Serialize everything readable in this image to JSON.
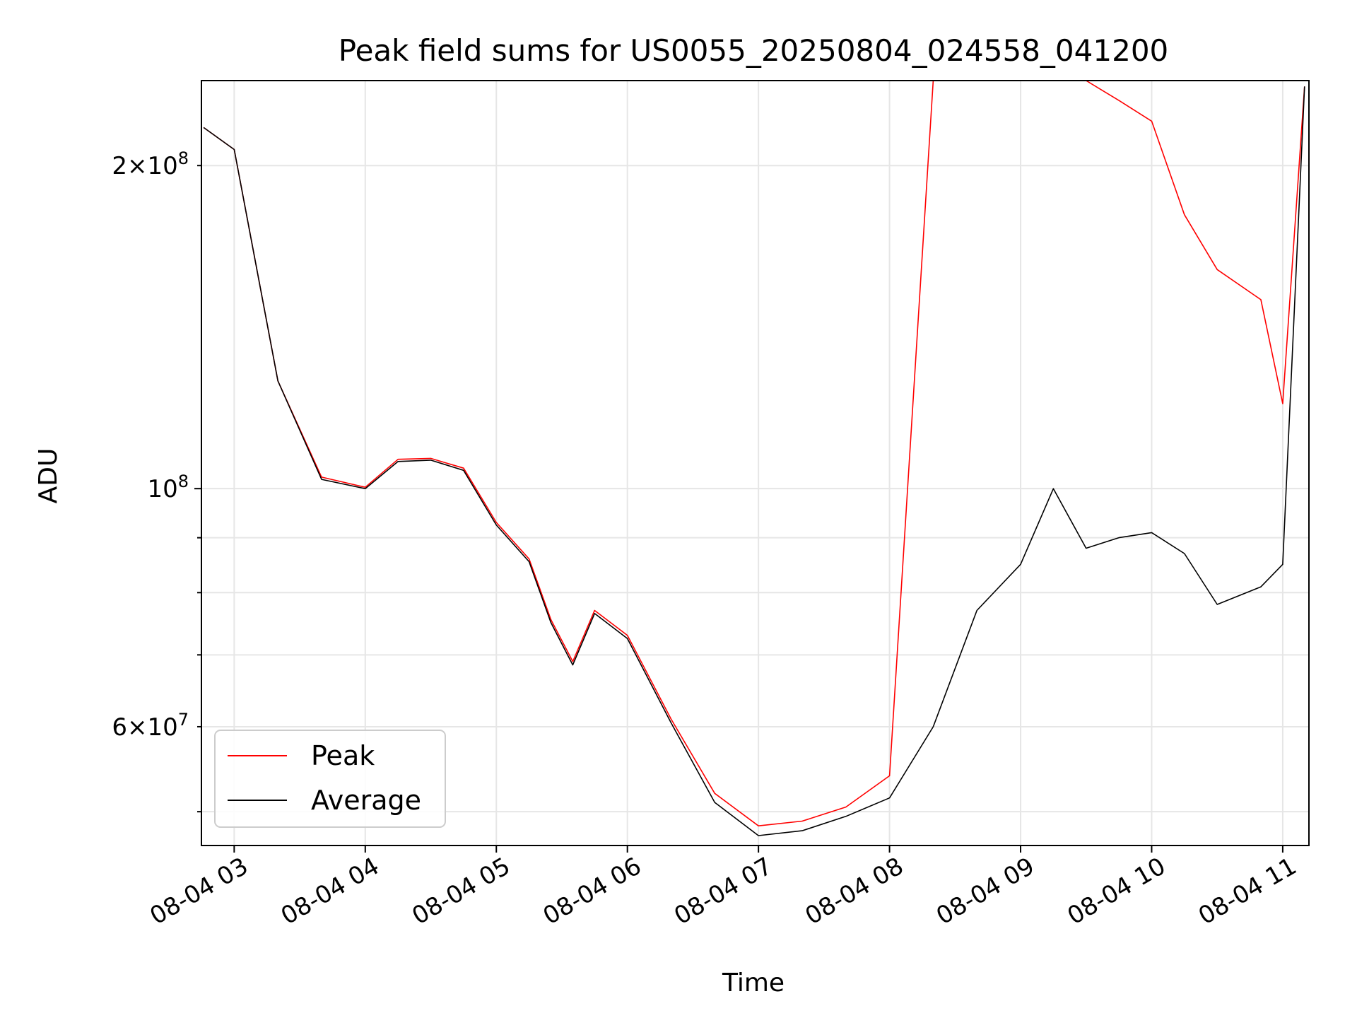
{
  "chart_data": {
    "type": "line",
    "title": "Peak field sums for US0055_20250804_024558_041200",
    "xlabel": "Time",
    "ylabel": "ADU",
    "y_scale": "log",
    "ylim": [
      46500000,
      240000000
    ],
    "xlim": [
      "2025-08-04 02:45",
      "2025-08-04 11:12"
    ],
    "x_ticks": [
      "2025-08-04 03:00",
      "2025-08-04 04:00",
      "2025-08-04 05:00",
      "2025-08-04 06:00",
      "2025-08-04 07:00",
      "2025-08-04 08:00",
      "2025-08-04 09:00",
      "2025-08-04 10:00",
      "2025-08-04 11:00"
    ],
    "x_tick_labels": [
      "08-04 03",
      "08-04 04",
      "08-04 05",
      "08-04 06",
      "08-04 07",
      "08-04 08",
      "08-04 09",
      "08-04 10",
      "08-04 11"
    ],
    "y_major_ticks": [
      100000000
    ],
    "y_major_tick_labels": [
      "10^8"
    ],
    "y_minor_ticks": [
      50000000,
      60000000,
      70000000,
      80000000,
      90000000,
      200000000
    ],
    "y_minor_tick_labels": [
      "",
      "6×10^7",
      "",
      "",
      "",
      "2×10^8"
    ],
    "grid": true,
    "legend": {
      "position": "lower-left"
    },
    "series": [
      {
        "name": "Peak",
        "color": "#ff0000",
        "x": [
          "2025-08-04 02:46",
          "2025-08-04 03:00",
          "2025-08-04 03:20",
          "2025-08-04 03:40",
          "2025-08-04 04:00",
          "2025-08-04 04:15",
          "2025-08-04 04:30",
          "2025-08-04 04:45",
          "2025-08-04 05:00",
          "2025-08-04 05:15",
          "2025-08-04 05:25",
          "2025-08-04 05:35",
          "2025-08-04 05:45",
          "2025-08-04 06:00",
          "2025-08-04 06:20",
          "2025-08-04 06:40",
          "2025-08-04 07:00",
          "2025-08-04 07:20",
          "2025-08-04 07:40",
          "2025-08-04 08:00",
          "2025-08-04 08:20",
          "2025-08-04 08:40",
          "2025-08-04 09:00",
          "2025-08-04 09:15",
          "2025-08-04 09:30",
          "2025-08-04 09:45",
          "2025-08-04 10:00",
          "2025-08-04 10:15",
          "2025-08-04 10:30",
          "2025-08-04 10:50",
          "2025-08-04 11:00",
          "2025-08-04 11:10"
        ],
        "values": [
          217000000,
          207000000,
          126000000,
          102500000,
          100300000,
          106500000,
          106700000,
          104500000,
          93000000,
          86000000,
          75500000,
          69000000,
          77000000,
          73000000,
          61000000,
          52000000,
          48500000,
          49000000,
          50500000,
          54000000,
          240000000,
          240000000,
          240000000,
          240000000,
          240000000,
          230000000,
          220000000,
          180000000,
          160000000,
          150000000,
          120000000,
          237000000
        ]
      },
      {
        "name": "Average",
        "color": "#000000",
        "x": [
          "2025-08-04 02:46",
          "2025-08-04 03:00",
          "2025-08-04 03:20",
          "2025-08-04 03:40",
          "2025-08-04 04:00",
          "2025-08-04 04:15",
          "2025-08-04 04:30",
          "2025-08-04 04:45",
          "2025-08-04 05:00",
          "2025-08-04 05:15",
          "2025-08-04 05:25",
          "2025-08-04 05:35",
          "2025-08-04 05:45",
          "2025-08-04 06:00",
          "2025-08-04 06:20",
          "2025-08-04 06:40",
          "2025-08-04 07:00",
          "2025-08-04 07:20",
          "2025-08-04 07:40",
          "2025-08-04 08:00",
          "2025-08-04 08:20",
          "2025-08-04 08:40",
          "2025-08-04 09:00",
          "2025-08-04 09:15",
          "2025-08-04 09:30",
          "2025-08-04 09:45",
          "2025-08-04 10:00",
          "2025-08-04 10:15",
          "2025-08-04 10:30",
          "2025-08-04 10:50",
          "2025-08-04 11:00",
          "2025-08-04 11:10"
        ],
        "values": [
          217000000,
          207000000,
          126000000,
          102000000,
          100000000,
          106000000,
          106300000,
          104000000,
          92500000,
          85500000,
          75000000,
          68500000,
          76500000,
          72500000,
          60500000,
          51000000,
          47500000,
          48000000,
          49500000,
          51500000,
          60000000,
          77000000,
          85000000,
          100000000,
          88000000,
          90000000,
          91000000,
          87000000,
          78000000,
          81000000,
          85000000,
          237000000
        ]
      }
    ]
  }
}
